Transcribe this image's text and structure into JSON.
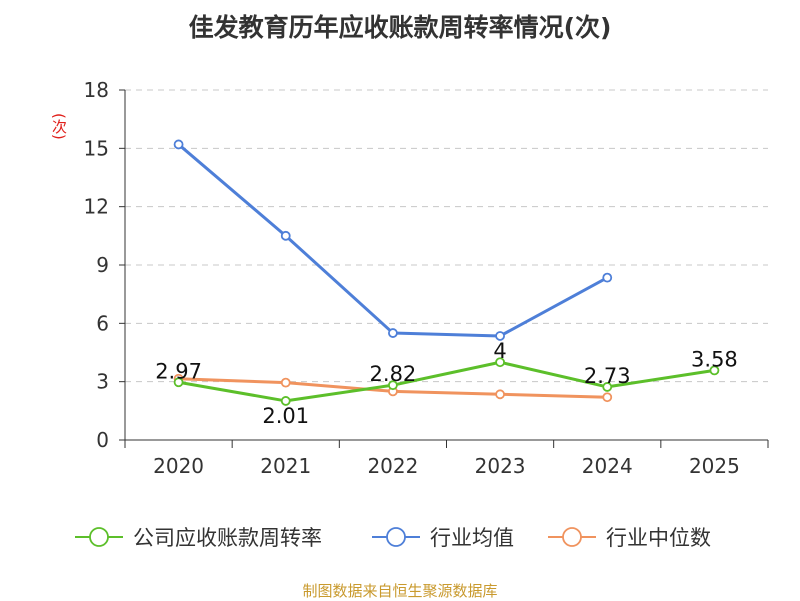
{
  "chart_data": {
    "type": "line",
    "title": "佳发教育历年应收账款周转率情况(次)",
    "ylabel": "(次)",
    "xlabel": "",
    "categories": [
      "2020",
      "2021",
      "2022",
      "2023",
      "2024",
      "2025"
    ],
    "ylim": [
      0,
      18
    ],
    "yticks": [
      0,
      3,
      6,
      9,
      12,
      15,
      18
    ],
    "grid": true,
    "legend_position": "bottom",
    "series": [
      {
        "name": "公司应收账款周转率",
        "color": "#5cbf2a",
        "values": [
          2.97,
          2.01,
          2.82,
          4,
          2.73,
          3.58
        ],
        "labels": [
          "2.97",
          "2.01",
          "2.82",
          "4",
          "2.73",
          "3.58"
        ]
      },
      {
        "name": "行业均值",
        "color": "#4e7fd8",
        "values": [
          15.2,
          10.5,
          5.5,
          5.35,
          8.35,
          null
        ]
      },
      {
        "name": "行业中位数",
        "color": "#f0935e",
        "values": [
          3.15,
          2.95,
          2.5,
          2.35,
          2.2,
          null
        ]
      }
    ]
  },
  "source": "制图数据来自恒生聚源数据库"
}
